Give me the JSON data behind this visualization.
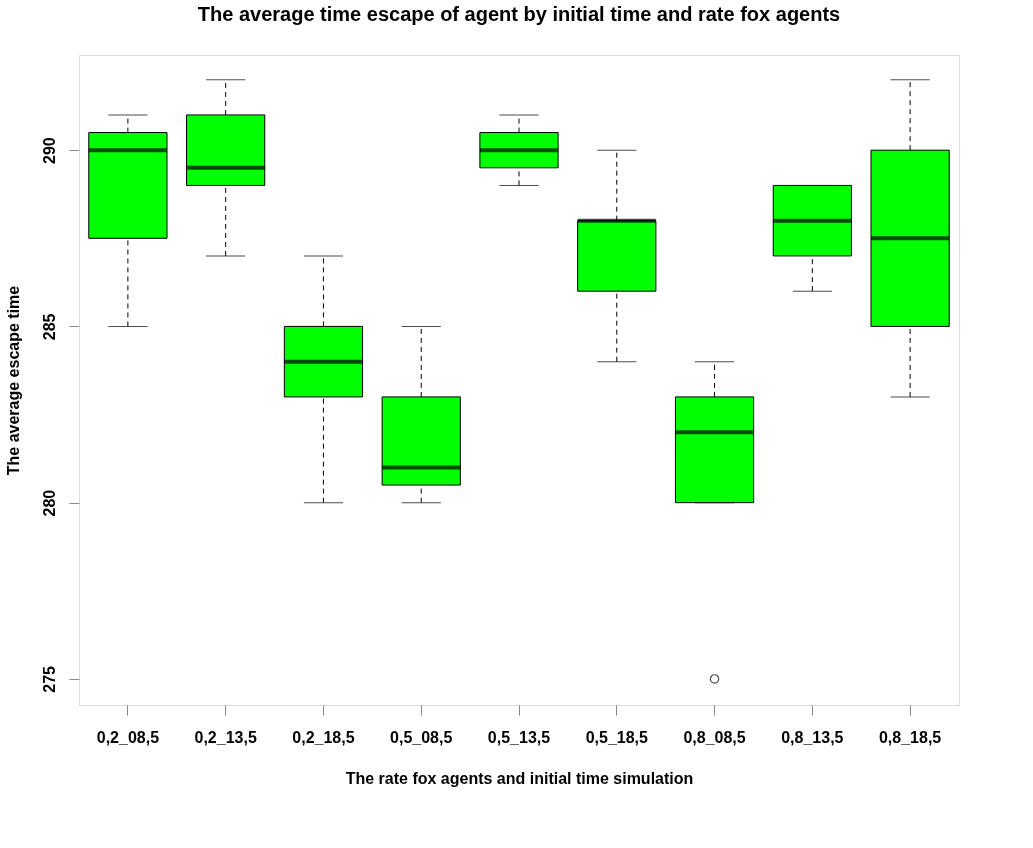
{
  "chart_data": {
    "type": "box",
    "title": "The average time escape of agent by initial time and rate fox agents",
    "xlabel": "The rate fox agents and initial time simulation",
    "ylabel": "The average escape time",
    "categories": [
      "0,2_08,5",
      "0,2_13,5",
      "0,2_18,5",
      "0,5_08,5",
      "0,5_13,5",
      "0,5_18,5",
      "0,8_08,5",
      "0,8_13,5",
      "0,8_18,5"
    ],
    "color": "#00ff00",
    "ylim": [
      274.26,
      292.7
    ],
    "yticks": [
      275,
      280,
      285,
      290
    ],
    "grid": false,
    "line_style": "dashed",
    "boxes": [
      {
        "low": 285,
        "q1": 287.5,
        "median": 290,
        "q3": 290.5,
        "high": 291
      },
      {
        "low": 287,
        "q1": 289,
        "median": 289.5,
        "q3": 291,
        "high": 292
      },
      {
        "low": 280,
        "q1": 283,
        "median": 284,
        "q3": 285,
        "high": 287
      },
      {
        "low": 280,
        "q1": 280.5,
        "median": 281,
        "q3": 283,
        "high": 285
      },
      {
        "low": 289,
        "q1": 289.5,
        "median": 290,
        "q3": 290.5,
        "high": 291
      },
      {
        "low": 284,
        "q1": 286,
        "median": 288,
        "q3": 288,
        "high": 290
      },
      {
        "low": 280,
        "q1": 280,
        "median": 282,
        "q3": 283,
        "high": 284,
        "outliers": [
          275
        ]
      },
      {
        "low": 286,
        "q1": 287,
        "median": 288,
        "q3": 289,
        "high": 289
      },
      {
        "low": 283,
        "q1": 285,
        "median": 287.5,
        "q3": 290,
        "high": 292
      }
    ]
  }
}
